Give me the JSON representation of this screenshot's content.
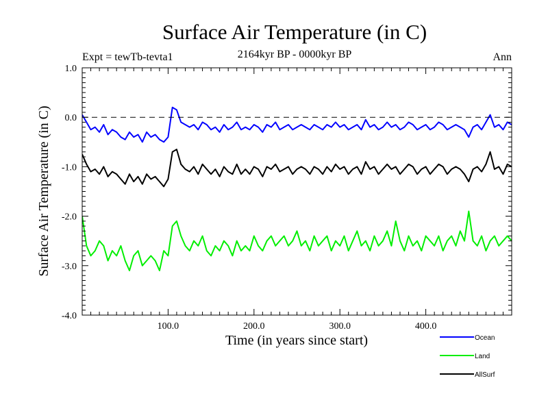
{
  "chart_data": {
    "type": "line",
    "title": "Surface Air Temperature (in C)",
    "subtitle": "2164kyr BP - 0000kyr BP",
    "left_label": "Expt = tewTb-tevta1",
    "right_label": "Ann",
    "xlabel": "Time (in years since start)",
    "ylabel": "Surface Air Temperature (in C)",
    "xlim": [
      0,
      500
    ],
    "ylim": [
      -4.0,
      1.0
    ],
    "x_ticks": [
      {
        "value": 100,
        "label": "100.0"
      },
      {
        "value": 200,
        "label": "200.0"
      },
      {
        "value": 300,
        "label": "300.0"
      },
      {
        "value": 400,
        "label": "400.0"
      }
    ],
    "y_ticks": [
      {
        "value": 1.0,
        "label": "1.0"
      },
      {
        "value": 0.0,
        "label": "0.0"
      },
      {
        "value": -1.0,
        "label": "-1.0"
      },
      {
        "value": -2.0,
        "label": "-2.0"
      },
      {
        "value": -3.0,
        "label": "-3.0"
      },
      {
        "value": -4.0,
        "label": "-4.0"
      }
    ],
    "reference_line": {
      "y": 0.0,
      "style": "dashed"
    },
    "legend_placement": "bottom-right",
    "x": [
      0,
      5,
      10,
      15,
      20,
      25,
      30,
      35,
      40,
      45,
      50,
      55,
      60,
      65,
      70,
      75,
      80,
      85,
      90,
      95,
      100,
      105,
      110,
      115,
      120,
      125,
      130,
      135,
      140,
      145,
      150,
      155,
      160,
      165,
      170,
      175,
      180,
      185,
      190,
      195,
      200,
      205,
      210,
      215,
      220,
      225,
      230,
      235,
      240,
      245,
      250,
      255,
      260,
      265,
      270,
      275,
      280,
      285,
      290,
      295,
      300,
      305,
      310,
      315,
      320,
      325,
      330,
      335,
      340,
      345,
      350,
      355,
      360,
      365,
      370,
      375,
      380,
      385,
      390,
      395,
      400,
      405,
      410,
      415,
      420,
      425,
      430,
      435,
      440,
      445,
      450,
      455,
      460,
      465,
      470,
      475,
      480,
      485,
      490,
      495,
      500
    ],
    "series": [
      {
        "name": "Ocean",
        "color": "#0000ff",
        "values": [
          0.05,
          -0.1,
          -0.25,
          -0.2,
          -0.3,
          -0.15,
          -0.35,
          -0.25,
          -0.3,
          -0.4,
          -0.45,
          -0.3,
          -0.4,
          -0.35,
          -0.5,
          -0.3,
          -0.4,
          -0.35,
          -0.45,
          -0.5,
          -0.4,
          0.2,
          0.15,
          -0.1,
          -0.15,
          -0.2,
          -0.15,
          -0.25,
          -0.1,
          -0.15,
          -0.25,
          -0.2,
          -0.3,
          -0.15,
          -0.25,
          -0.2,
          -0.1,
          -0.25,
          -0.2,
          -0.25,
          -0.15,
          -0.2,
          -0.3,
          -0.15,
          -0.2,
          -0.1,
          -0.25,
          -0.2,
          -0.15,
          -0.25,
          -0.2,
          -0.15,
          -0.2,
          -0.25,
          -0.15,
          -0.2,
          -0.25,
          -0.15,
          -0.2,
          -0.1,
          -0.2,
          -0.15,
          -0.25,
          -0.2,
          -0.15,
          -0.25,
          -0.05,
          -0.2,
          -0.15,
          -0.25,
          -0.2,
          -0.1,
          -0.2,
          -0.15,
          -0.25,
          -0.2,
          -0.1,
          -0.15,
          -0.25,
          -0.2,
          -0.15,
          -0.25,
          -0.2,
          -0.1,
          -0.15,
          -0.25,
          -0.2,
          -0.15,
          -0.2,
          -0.25,
          -0.4,
          -0.2,
          -0.15,
          -0.25,
          -0.1,
          0.05,
          -0.2,
          -0.15,
          -0.25,
          -0.1,
          -0.15
        ]
      },
      {
        "name": "Land",
        "color": "#00ee00",
        "values": [
          -2.0,
          -2.6,
          -2.8,
          -2.7,
          -2.5,
          -2.6,
          -2.9,
          -2.7,
          -2.8,
          -2.6,
          -2.9,
          -3.1,
          -2.8,
          -2.7,
          -3.0,
          -2.9,
          -2.8,
          -2.9,
          -3.1,
          -2.7,
          -2.8,
          -2.2,
          -2.1,
          -2.4,
          -2.6,
          -2.7,
          -2.5,
          -2.6,
          -2.4,
          -2.7,
          -2.8,
          -2.6,
          -2.7,
          -2.5,
          -2.6,
          -2.8,
          -2.5,
          -2.7,
          -2.6,
          -2.7,
          -2.4,
          -2.6,
          -2.7,
          -2.5,
          -2.4,
          -2.6,
          -2.5,
          -2.4,
          -2.6,
          -2.5,
          -2.3,
          -2.6,
          -2.5,
          -2.7,
          -2.4,
          -2.6,
          -2.5,
          -2.4,
          -2.7,
          -2.5,
          -2.6,
          -2.4,
          -2.7,
          -2.5,
          -2.3,
          -2.6,
          -2.5,
          -2.7,
          -2.4,
          -2.6,
          -2.5,
          -2.3,
          -2.6,
          -2.1,
          -2.5,
          -2.7,
          -2.4,
          -2.6,
          -2.5,
          -2.7,
          -2.4,
          -2.5,
          -2.6,
          -2.4,
          -2.7,
          -2.5,
          -2.4,
          -2.6,
          -2.3,
          -2.5,
          -1.9,
          -2.5,
          -2.6,
          -2.4,
          -2.7,
          -2.5,
          -2.4,
          -2.6,
          -2.5,
          -2.4,
          -2.5
        ]
      },
      {
        "name": "AllSurf",
        "color": "#000000",
        "values": [
          -0.75,
          -0.95,
          -1.1,
          -1.05,
          -1.15,
          -1.0,
          -1.2,
          -1.1,
          -1.15,
          -1.25,
          -1.35,
          -1.15,
          -1.3,
          -1.2,
          -1.35,
          -1.15,
          -1.25,
          -1.2,
          -1.3,
          -1.4,
          -1.25,
          -0.7,
          -0.65,
          -0.95,
          -1.05,
          -1.1,
          -1.0,
          -1.15,
          -0.95,
          -1.05,
          -1.15,
          -1.05,
          -1.2,
          -1.0,
          -1.1,
          -1.15,
          -0.95,
          -1.15,
          -1.05,
          -1.15,
          -1.0,
          -1.05,
          -1.2,
          -1.0,
          -1.05,
          -0.95,
          -1.1,
          -1.05,
          -1.0,
          -1.15,
          -1.05,
          -1.0,
          -1.05,
          -1.15,
          -1.0,
          -1.05,
          -1.15,
          -1.0,
          -1.1,
          -0.95,
          -1.05,
          -1.0,
          -1.15,
          -1.05,
          -1.0,
          -1.15,
          -0.9,
          -1.05,
          -1.0,
          -1.15,
          -1.05,
          -0.95,
          -1.05,
          -1.0,
          -1.15,
          -1.05,
          -0.95,
          -1.0,
          -1.15,
          -1.05,
          -1.0,
          -1.15,
          -1.05,
          -0.95,
          -1.0,
          -1.15,
          -1.05,
          -1.0,
          -1.05,
          -1.15,
          -1.3,
          -1.05,
          -1.0,
          -1.1,
          -0.95,
          -0.7,
          -1.05,
          -1.0,
          -1.15,
          -0.95,
          -1.0
        ]
      }
    ]
  }
}
